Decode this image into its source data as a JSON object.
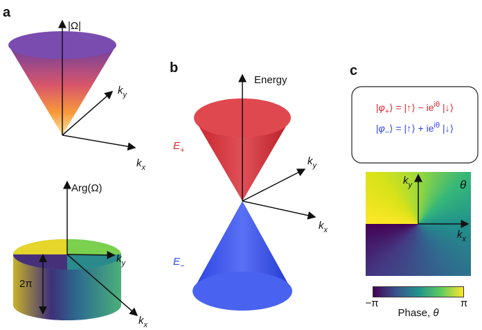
{
  "panel_a": {
    "label": "a",
    "top": {
      "z_label": "|Ω|",
      "ky": {
        "base": "k",
        "sub": "y"
      },
      "kx": {
        "base": "k",
        "sub": "x"
      }
    },
    "bottom": {
      "z_label": "Arg(Ω)",
      "ky": {
        "base": "k",
        "sub": "y"
      },
      "kx": {
        "base": "k",
        "sub": "x"
      },
      "height_label": "2π"
    }
  },
  "panel_b": {
    "label": "b",
    "z_label": "Energy",
    "upper": {
      "base": "E",
      "sub": "+"
    },
    "lower": {
      "base": "E",
      "sub": "−"
    },
    "ky": {
      "base": "k",
      "sub": "y"
    },
    "kx": {
      "base": "k",
      "sub": "x"
    }
  },
  "panel_c": {
    "label": "c",
    "equations": [
      [
        "|",
        "φ",
        "+",
        "⟩ = |↑⟩ − ie",
        "iθ",
        " |↓⟩"
      ],
      [
        "|",
        "φ",
        "−",
        "⟩ = |↑⟩ + ie",
        "iθ",
        " |↓⟩"
      ]
    ],
    "map": {
      "ky": {
        "base": "k",
        "sub": "y"
      },
      "kx": {
        "base": "k",
        "sub": "x"
      },
      "angle": "θ"
    },
    "colorbar": {
      "min": "−π",
      "max": "π",
      "label": [
        "Phase, ",
        "θ"
      ]
    }
  }
}
